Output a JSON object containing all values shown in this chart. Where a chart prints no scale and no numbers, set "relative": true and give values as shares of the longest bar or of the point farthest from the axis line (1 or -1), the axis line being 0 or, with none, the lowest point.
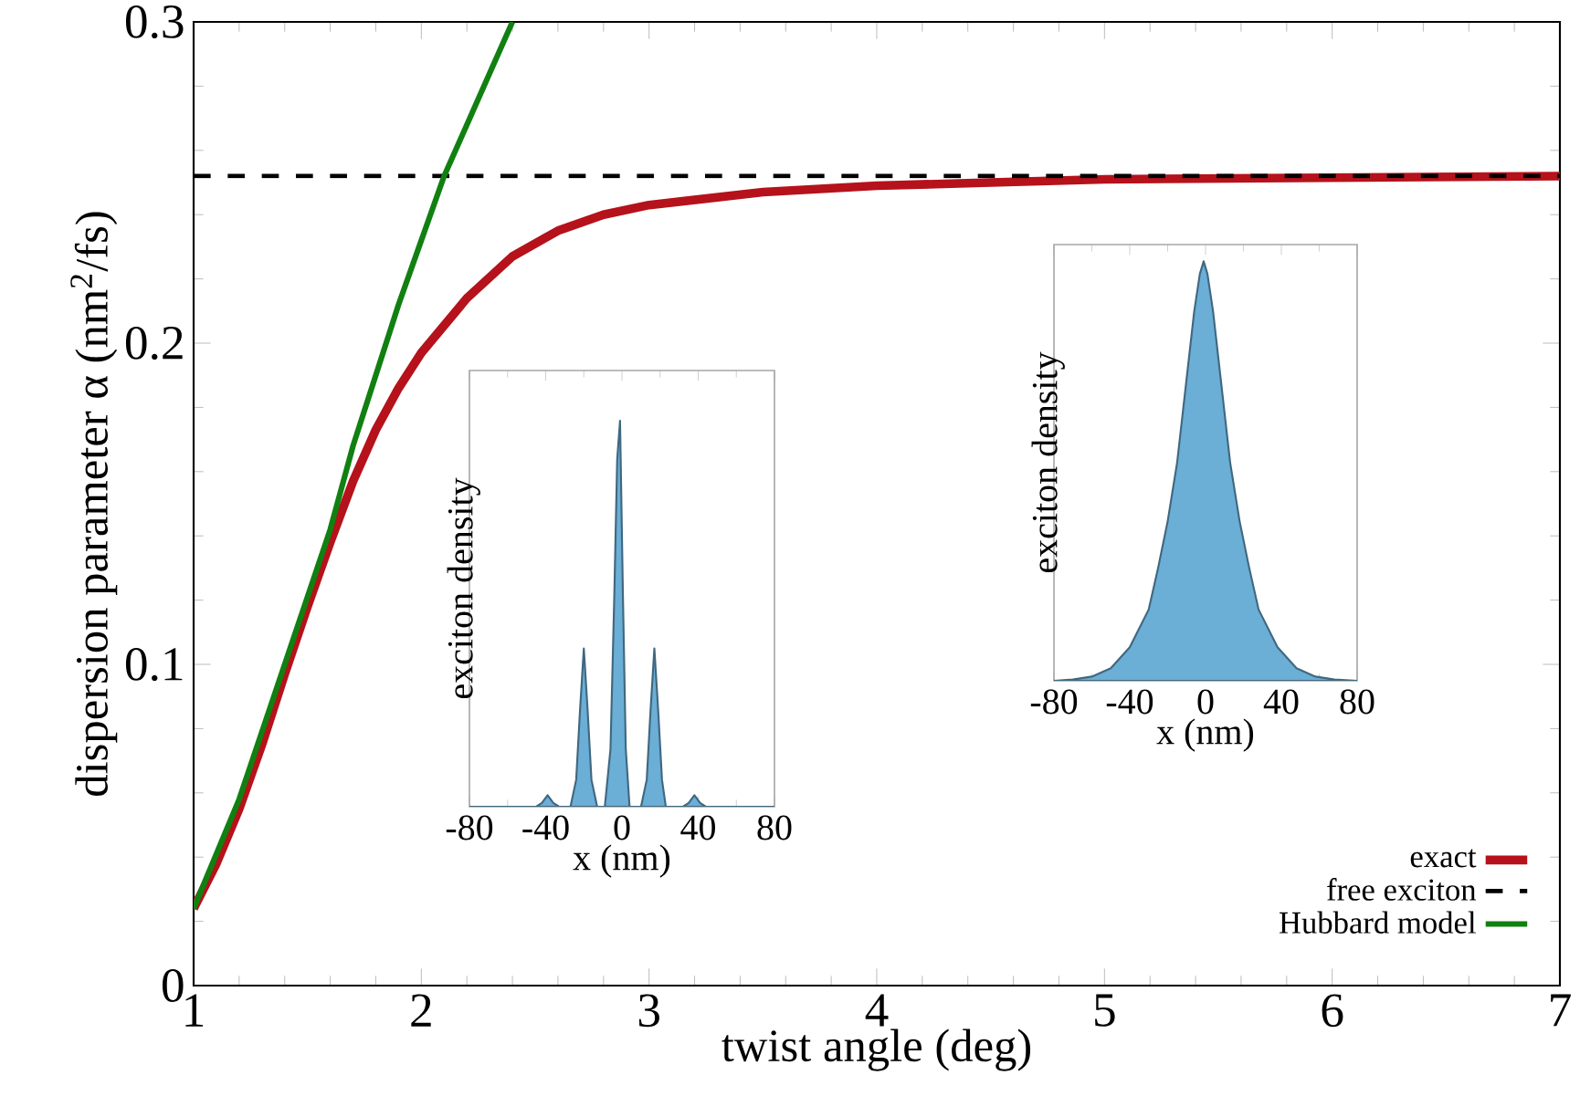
{
  "chart_data": [
    {
      "type": "line",
      "xlabel": "twist angle (deg)",
      "ylabel": "dispersion parameter α (nm$^{2}$/fs)",
      "xlim": [
        1,
        7
      ],
      "ylim": [
        0,
        0.3
      ],
      "xticks": [
        1,
        2,
        3,
        4,
        5,
        6,
        7
      ],
      "yticks": [
        0,
        0.1,
        0.2,
        0.3
      ],
      "legend": "bottom right",
      "series": [
        {
          "name": "exact",
          "color": "#b5121b",
          "line_style": "solid",
          "x": [
            1,
            1.1,
            1.2,
            1.3,
            1.4,
            1.5,
            1.6,
            1.7,
            1.8,
            1.9,
            2.0,
            2.2,
            2.4,
            2.6,
            2.8,
            3.0,
            3.5,
            4.0,
            4.5,
            5.0,
            6.0,
            7.0
          ],
          "values": [
            0.024,
            0.038,
            0.055,
            0.075,
            0.097,
            0.118,
            0.138,
            0.157,
            0.173,
            0.186,
            0.197,
            0.214,
            0.227,
            0.235,
            0.24,
            0.243,
            0.247,
            0.249,
            0.25,
            0.251,
            0.2515,
            0.252
          ]
        },
        {
          "name": "free exciton",
          "color": "#000000",
          "line_style": "dashed",
          "x": [
            1,
            7
          ],
          "values": [
            0.252,
            0.252
          ]
        },
        {
          "name": "Hubbard model",
          "color": "#118011",
          "line_style": "solid",
          "x": [
            1,
            1.2,
            1.4,
            1.6,
            1.7,
            1.8,
            1.9,
            2.0,
            2.1,
            2.2,
            2.3,
            2.4
          ],
          "values": [
            0.024,
            0.058,
            0.1,
            0.142,
            0.168,
            0.19,
            0.212,
            0.232,
            0.252,
            0.268,
            0.284,
            0.3
          ]
        }
      ]
    },
    {
      "type": "area",
      "relative": true,
      "xlabel": "x (nm)",
      "ylabel": "exciton density",
      "xlim": [
        -80,
        80
      ],
      "xticks": [
        -80,
        -40,
        0,
        40,
        80
      ],
      "tick_labels": "x",
      "series": [
        {
          "color": "#6baed6",
          "x": [
            -80,
            -45,
            -42,
            -39,
            -36,
            -33,
            -27,
            -24,
            -22,
            -20,
            -18,
            -16,
            -13,
            -9,
            -6,
            -4,
            -2.5,
            -1,
            0.5,
            2,
            4,
            7,
            10,
            13,
            15,
            17,
            19,
            21,
            23,
            26,
            32,
            35,
            38,
            41,
            44,
            80
          ],
          "values": [
            0,
            0,
            0.01,
            0.03,
            0.01,
            0,
            0,
            0.07,
            0.25,
            0.41,
            0.25,
            0.07,
            0,
            0,
            0.15,
            0.55,
            0.9,
            1,
            0.55,
            0.15,
            0,
            0,
            0,
            0.07,
            0.25,
            0.41,
            0.25,
            0.07,
            0,
            0,
            0,
            0.01,
            0.03,
            0.01,
            0,
            0
          ]
        }
      ]
    },
    {
      "type": "area",
      "relative": true,
      "xlabel": "x (nm)",
      "ylabel": "exciton density",
      "xlim": [
        -80,
        80
      ],
      "xticks": [
        -80,
        -40,
        0,
        40,
        80
      ],
      "tick_labels": "x",
      "series": [
        {
          "color": "#6baed6",
          "x": [
            -80,
            -70,
            -60,
            -50,
            -40,
            -30,
            -25,
            -20,
            -15,
            -10,
            -6,
            -3,
            -1,
            1,
            4,
            8,
            13,
            18,
            23,
            28,
            38,
            48,
            58,
            68,
            80
          ],
          "values": [
            0,
            0.003,
            0.01,
            0.03,
            0.08,
            0.17,
            0.27,
            0.38,
            0.52,
            0.72,
            0.88,
            0.97,
            1,
            0.97,
            0.88,
            0.72,
            0.52,
            0.38,
            0.27,
            0.17,
            0.08,
            0.03,
            0.01,
            0.003,
            0
          ]
        }
      ]
    }
  ]
}
